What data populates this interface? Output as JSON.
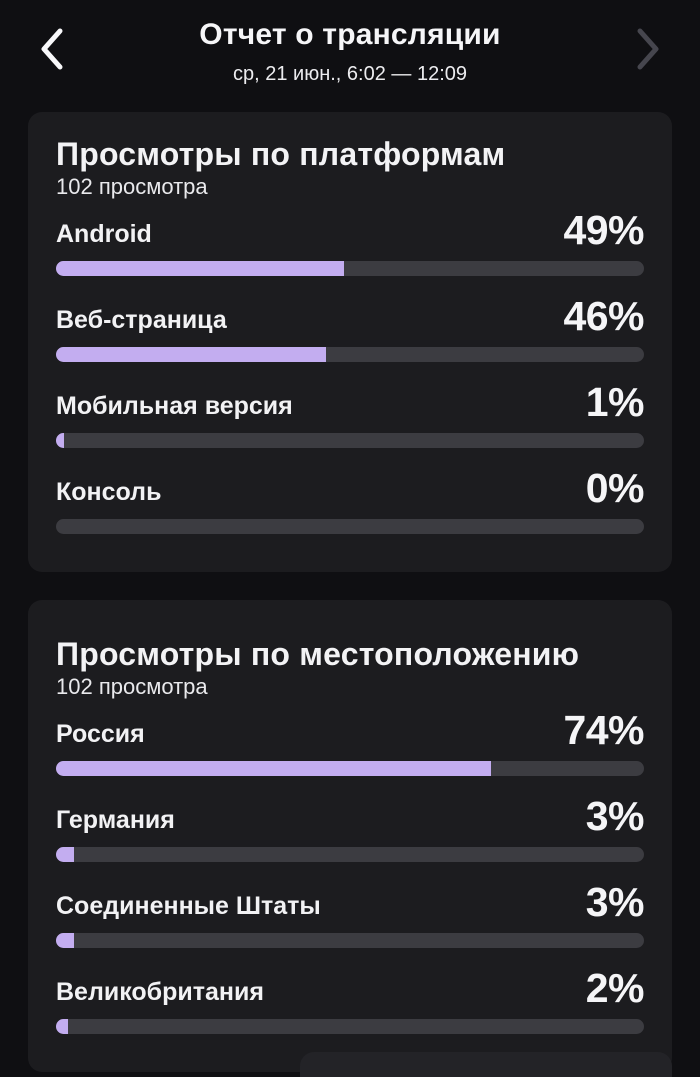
{
  "header": {
    "title": "Отчет о трансляции",
    "subtitle": "ср, 21 июн., 6:02 — 12:09",
    "prev_label": "назад",
    "next_label": "вперед"
  },
  "cards": [
    {
      "title": "Просмотры по платформам",
      "subtitle": "102 просмотра",
      "rows": [
        {
          "label": "Android",
          "value": "49%",
          "percent": 49
        },
        {
          "label": "Веб-страница",
          "value": "46%",
          "percent": 46
        },
        {
          "label": "Мобильная версия",
          "value": "1%",
          "percent": 1
        },
        {
          "label": "Консоль",
          "value": "0%",
          "percent": 0
        }
      ]
    },
    {
      "title": "Просмотры по местоположению",
      "subtitle": "102 просмотра",
      "rows": [
        {
          "label": "Россия",
          "value": "74%",
          "percent": 74
        },
        {
          "label": "Германия",
          "value": "3%",
          "percent": 3
        },
        {
          "label": "Соединенные Штаты",
          "value": "3%",
          "percent": 3
        },
        {
          "label": "Великобритания",
          "value": "2%",
          "percent": 2
        }
      ]
    }
  ],
  "colors": {
    "page_bg": "#0f0f12",
    "card_bg": "#1c1c1f",
    "track": "#3c3c41",
    "bar_fill": "#c3adf0",
    "text": "#f4f4f6",
    "chevron_enabled": "#f8f8fa",
    "chevron_disabled": "#46464e"
  }
}
